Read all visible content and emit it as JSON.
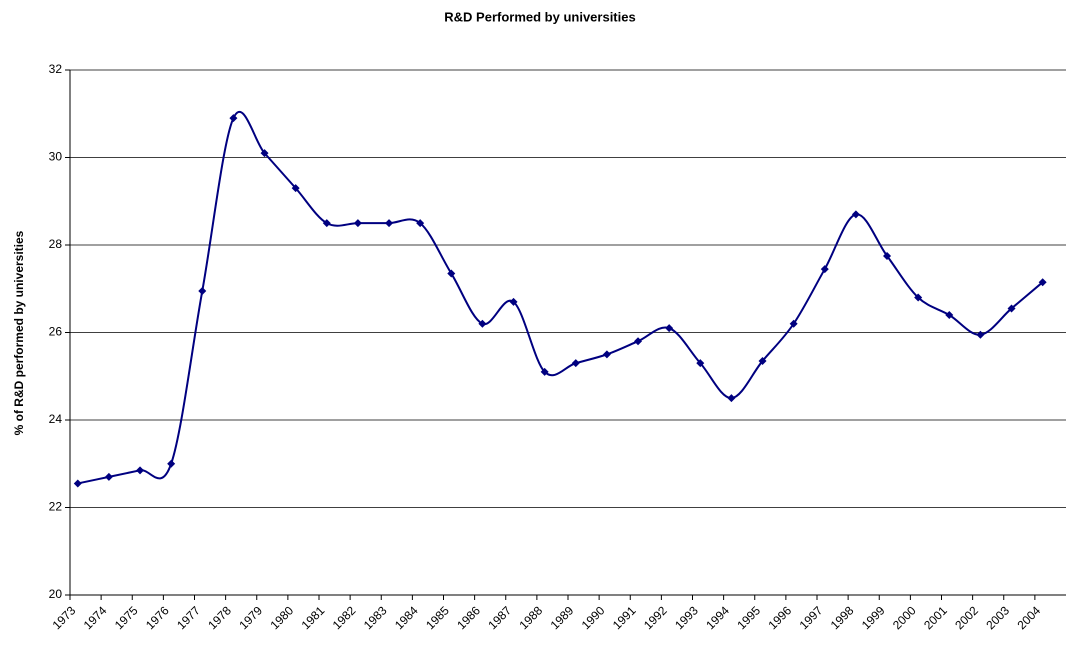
{
  "chart_data": {
    "type": "line",
    "title": "R&D Performed by universities",
    "y_label": "% of R&D performed by universities",
    "categories": [
      "1973",
      "1974",
      "1975",
      "1976",
      "1977",
      "1978",
      "1979",
      "1980",
      "1981",
      "1982",
      "1983",
      "1984",
      "1985",
      "1986",
      "1987",
      "1988",
      "1989",
      "1990",
      "1991",
      "1992",
      "1993",
      "1994",
      "1995",
      "1996",
      "1997",
      "1998",
      "1999",
      "2000",
      "2001",
      "2002",
      "2003",
      "2004"
    ],
    "series": [
      {
        "name": "R&D performed by universities",
        "color": "#000080",
        "values": [
          22.55,
          22.7,
          22.85,
          23.0,
          26.95,
          30.9,
          30.1,
          29.3,
          28.5,
          28.5,
          28.5,
          28.5,
          27.35,
          26.2,
          26.7,
          25.1,
          25.3,
          25.5,
          25.8,
          26.1,
          25.3,
          24.5,
          25.35,
          26.2,
          27.45,
          28.7,
          27.75,
          26.8,
          26.4,
          25.95,
          26.55,
          27.15
        ]
      }
    ],
    "ylim": [
      20,
      32
    ],
    "yticks": [
      20,
      22,
      24,
      26,
      28,
      30,
      32
    ],
    "grid": true,
    "smooth": true
  }
}
